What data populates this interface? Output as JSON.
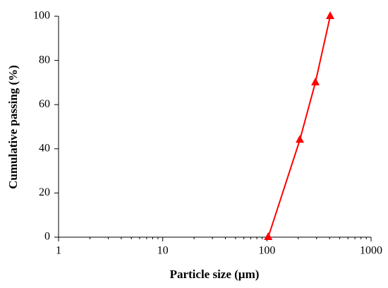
{
  "chart_data": {
    "type": "line",
    "x_label": "Particle size (µm)",
    "y_label": "Cumulative passing (%)",
    "x": [
      103,
      207,
      292,
      405
    ],
    "series": [
      {
        "color": "#ff0000",
        "values": [
          0,
          44,
          70,
          100
        ]
      }
    ],
    "xlim": [
      1,
      1000
    ],
    "xlog": true,
    "xticks": [
      1,
      10,
      100,
      1000
    ],
    "xminorticks": [
      2,
      3,
      4,
      5,
      6,
      7,
      8,
      9,
      20,
      30,
      40,
      50,
      60,
      70,
      80,
      90,
      200,
      300,
      400,
      500,
      600,
      700,
      800,
      900
    ],
    "ylim": [
      0,
      100
    ],
    "yticks": [
      0,
      20,
      40,
      60,
      80,
      100
    ],
    "grid": false
  }
}
